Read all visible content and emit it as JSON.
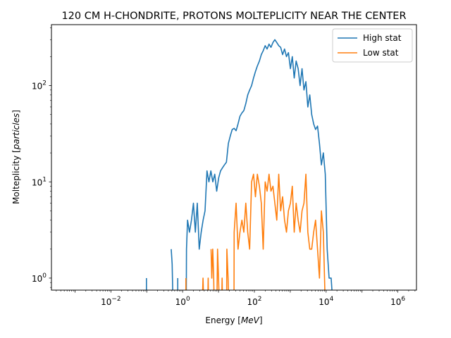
{
  "chart_data": {
    "type": "line",
    "title": "120 CM H-CHONDRITE, PROTONS MOLTEPLICITY NEAR THE CENTER",
    "xlabel": "Energy",
    "xlabel_unit": "MeV",
    "ylabel": "Molteplicity",
    "ylabel_unit": "particles",
    "xscale": "log",
    "yscale": "log",
    "xlim": [
      0.00022,
      3300000
    ],
    "ylim": [
      0.75,
      430
    ],
    "x_ticks": [
      {
        "value": 0.01,
        "base": "10",
        "exp": "−2"
      },
      {
        "value": 1,
        "base": "10",
        "exp": "0"
      },
      {
        "value": 100,
        "base": "10",
        "exp": "2"
      },
      {
        "value": 10000,
        "base": "10",
        "exp": "4"
      },
      {
        "value": 1000000,
        "base": "10",
        "exp": "6"
      }
    ],
    "y_ticks": [
      {
        "value": 1,
        "base": "10",
        "exp": "0"
      },
      {
        "value": 10,
        "base": "10",
        "exp": "1"
      },
      {
        "value": 100,
        "base": "10",
        "exp": "2"
      }
    ],
    "legend_position": "top-right",
    "series": [
      {
        "name": "High stat",
        "color": "#1f77b4",
        "segments": [
          [
            [
              0.098,
              1
            ],
            [
              0.098,
              0.5
            ]
          ],
          [
            [
              0.48,
              2
            ],
            [
              0.51,
              1.4
            ],
            [
              0.54,
              0.5
            ]
          ],
          [
            [
              0.73,
              1
            ],
            [
              0.73,
              0.5
            ]
          ],
          [
            [
              1.26,
              0.5
            ],
            [
              1.28,
              2
            ],
            [
              1.37,
              4
            ],
            [
              1.55,
              3
            ],
            [
              1.76,
              4
            ],
            [
              2.0,
              6
            ],
            [
              2.26,
              3
            ],
            [
              2.56,
              6
            ],
            [
              2.9,
              2
            ],
            [
              3.29,
              3
            ],
            [
              3.72,
              4
            ],
            [
              4.21,
              5
            ],
            [
              4.77,
              13
            ],
            [
              5.4,
              10
            ],
            [
              6.12,
              13
            ],
            [
              6.93,
              10
            ],
            [
              7.85,
              12
            ],
            [
              8.89,
              8
            ],
            [
              10.1,
              11
            ],
            [
              11.4,
              13
            ],
            [
              12.9,
              14
            ],
            [
              14.6,
              15
            ],
            [
              16.6,
              16
            ],
            [
              18.8,
              25
            ],
            [
              21.3,
              30
            ],
            [
              24.1,
              35
            ],
            [
              27.3,
              36
            ],
            [
              30.9,
              34
            ],
            [
              35.0,
              40
            ],
            [
              39.6,
              48
            ],
            [
              44.9,
              52
            ],
            [
              50.8,
              55
            ],
            [
              57.6,
              65
            ],
            [
              65.2,
              80
            ],
            [
              73.8,
              90
            ],
            [
              83.6,
              100
            ],
            [
              94.7,
              120
            ],
            [
              107,
              140
            ],
            [
              121,
              160
            ],
            [
              138,
              180
            ],
            [
              156,
              210
            ],
            [
              176,
              230
            ],
            [
              200,
              260
            ],
            [
              226,
              240
            ],
            [
              256,
              270
            ],
            [
              290,
              250
            ],
            [
              329,
              280
            ],
            [
              372,
              300
            ],
            [
              421,
              280
            ],
            [
              477,
              260
            ],
            [
              540,
              250
            ],
            [
              612,
              210
            ],
            [
              693,
              240
            ],
            [
              785,
              200
            ],
            [
              889,
              220
            ],
            [
              1010,
              150
            ],
            [
              1140,
              200
            ],
            [
              1290,
              120
            ],
            [
              1460,
              180
            ],
            [
              1660,
              150
            ],
            [
              1880,
              100
            ],
            [
              2130,
              150
            ],
            [
              2410,
              90
            ],
            [
              2730,
              110
            ],
            [
              3090,
              60
            ],
            [
              3500,
              80
            ],
            [
              3960,
              50
            ],
            [
              4490,
              40
            ],
            [
              5080,
              35
            ],
            [
              5760,
              38
            ],
            [
              6520,
              25
            ],
            [
              7380,
              15
            ],
            [
              8360,
              20
            ],
            [
              9470,
              12
            ],
            [
              10700,
              2
            ],
            [
              12100,
              1
            ],
            [
              13800,
              1
            ],
            [
              15600,
              0.5
            ]
          ]
        ]
      },
      {
        "name": "Low stat",
        "color": "#ff7f0e",
        "segments": [
          [
            [
              1.23,
              1
            ],
            [
              1.23,
              0.5
            ]
          ],
          [
            [
              3.5,
              0.5
            ],
            [
              3.7,
              1
            ],
            [
              3.9,
              0.5
            ]
          ],
          [
            [
              5.0,
              0.5
            ],
            [
              5.15,
              1
            ],
            [
              5.3,
              0.5
            ]
          ],
          [
            [
              6.2,
              2
            ],
            [
              6.5,
              1
            ],
            [
              6.9,
              2
            ],
            [
              7.3,
              1.1
            ],
            [
              7.6,
              0.5
            ]
          ],
          [
            [
              9.0,
              0.5
            ],
            [
              9.4,
              2
            ],
            [
              10.0,
              1
            ],
            [
              10.6,
              0.5
            ]
          ],
          [
            [
              12.2,
              0.5
            ],
            [
              12.6,
              1
            ],
            [
              13.0,
              0.5
            ]
          ],
          [
            [
              16.8,
              0.5
            ],
            [
              17.1,
              2
            ],
            [
              18.5,
              1
            ],
            [
              19.4,
              0.5
            ]
          ],
          [
            [
              27.0,
              0.5
            ],
            [
              27.3,
              3
            ],
            [
              30.9,
              6
            ],
            [
              35.0,
              2
            ],
            [
              39.6,
              3
            ],
            [
              44.9,
              4
            ],
            [
              50.8,
              3
            ],
            [
              57.6,
              6
            ],
            [
              65.2,
              3
            ],
            [
              73.8,
              2
            ],
            [
              83.6,
              10
            ],
            [
              94.7,
              12
            ],
            [
              107,
              7
            ],
            [
              121,
              12
            ],
            [
              138,
              9
            ],
            [
              156,
              6
            ],
            [
              176,
              2
            ],
            [
              200,
              10
            ],
            [
              226,
              8
            ],
            [
              256,
              12
            ],
            [
              290,
              8
            ],
            [
              329,
              9
            ],
            [
              372,
              6
            ],
            [
              421,
              4
            ],
            [
              477,
              12
            ],
            [
              540,
              5
            ],
            [
              612,
              7
            ],
            [
              693,
              4
            ],
            [
              785,
              3
            ],
            [
              889,
              5
            ],
            [
              1010,
              6
            ],
            [
              1140,
              9
            ],
            [
              1290,
              3
            ],
            [
              1460,
              6
            ],
            [
              1660,
              4
            ],
            [
              1880,
              3
            ],
            [
              2130,
              5
            ],
            [
              2410,
              6
            ],
            [
              2730,
              12
            ],
            [
              3090,
              3
            ],
            [
              3500,
              2
            ],
            [
              3960,
              2
            ],
            [
              4490,
              3
            ],
            [
              5080,
              4
            ],
            [
              5760,
              2
            ],
            [
              6520,
              1
            ],
            [
              7380,
              5
            ],
            [
              8360,
              3
            ],
            [
              9470,
              0.5
            ]
          ]
        ]
      }
    ]
  }
}
